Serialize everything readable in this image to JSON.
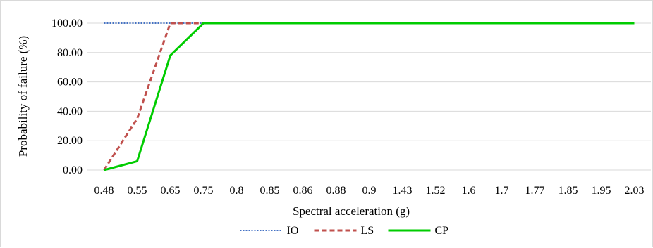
{
  "chart_data": {
    "type": "line",
    "title": "",
    "xlabel": "Spectral acceleration (g)",
    "ylabel": "Probability of failure (%)",
    "categories": [
      "0.48",
      "0.55",
      "0.65",
      "0.75",
      "0.8",
      "0.85",
      "0.86",
      "0.88",
      "0.9",
      "1.43",
      "1.52",
      "1.6",
      "1.7",
      "1.77",
      "1.85",
      "1.95",
      "2.03"
    ],
    "ylim": [
      0,
      100
    ],
    "yticks": [
      "0.00",
      "20.00",
      "40.00",
      "60.00",
      "80.00",
      "100.00"
    ],
    "grid": "horizontal",
    "legend": "bottom",
    "series": [
      {
        "name": "IO",
        "style": "dotted",
        "color": "#4472c4",
        "values": [
          100,
          100,
          100,
          100,
          100,
          100,
          100,
          100,
          100,
          100,
          100,
          100,
          100,
          100,
          100,
          100,
          100
        ]
      },
      {
        "name": "LS",
        "style": "dashed",
        "color": "#c0504d",
        "values": [
          0,
          35,
          100,
          100,
          100,
          100,
          100,
          100,
          100,
          100,
          100,
          100,
          100,
          100,
          100,
          100,
          100
        ]
      },
      {
        "name": "CP",
        "style": "solid",
        "color": "#00cc00",
        "values": [
          0,
          6,
          78,
          100,
          100,
          100,
          100,
          100,
          100,
          100,
          100,
          100,
          100,
          100,
          100,
          100,
          100
        ]
      }
    ]
  }
}
